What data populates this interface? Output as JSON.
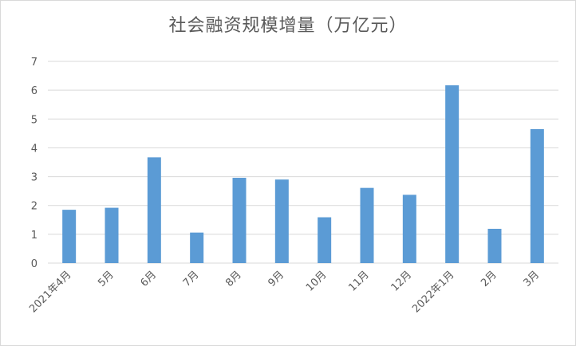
{
  "chart_data": {
    "type": "bar",
    "title": "社会融资规模增量（万亿元）",
    "xlabel": "",
    "ylabel": "",
    "categories": [
      "2021年4月",
      "5月",
      "6月",
      "7月",
      "8月",
      "9月",
      "10月",
      "11月",
      "12月",
      "2022年1月",
      "2月",
      "3月"
    ],
    "series": [
      {
        "values": [
          1.85,
          1.92,
          3.67,
          1.06,
          2.96,
          2.9,
          1.59,
          2.61,
          2.37,
          6.17,
          1.19,
          4.65
        ]
      }
    ],
    "ylim": [
      0,
      7
    ],
    "yticks": [
      "0",
      "1",
      "2",
      "3",
      "4",
      "5",
      "6",
      "7"
    ],
    "grid": true,
    "legend": "none",
    "colors": {
      "bar": "#5b9bd5",
      "grid": "#d9d9d9",
      "text": "#595959"
    }
  }
}
